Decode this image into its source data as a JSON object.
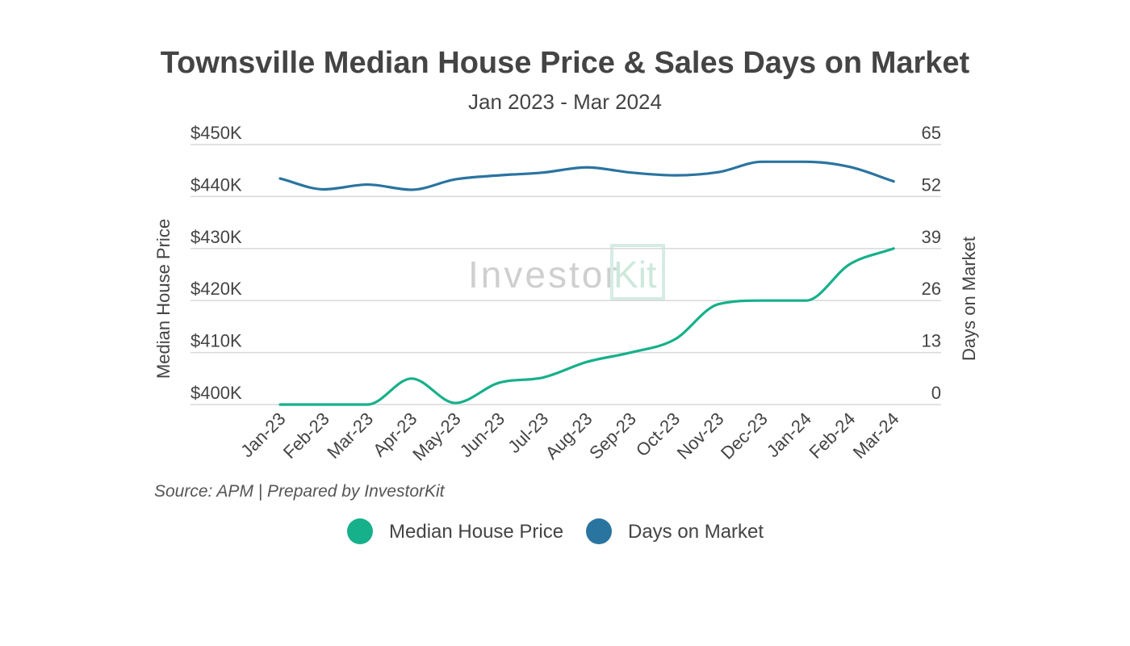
{
  "chart_data": {
    "type": "line",
    "title": "Townsville Median House Price & Sales Days on Market",
    "subtitle": "Jan 2023 - Mar 2024",
    "categories": [
      "Jan-23",
      "Feb-23",
      "Mar-23",
      "Apr-23",
      "May-23",
      "Jun-23",
      "Jul-23",
      "Aug-23",
      "Sep-23",
      "Oct-23",
      "Nov-23",
      "Dec-23",
      "Jan-24",
      "Feb-24",
      "Mar-24"
    ],
    "y_left": {
      "label": "Median House Price",
      "range": [
        400000,
        450000
      ],
      "ticks": [
        400000,
        410000,
        420000,
        430000,
        440000,
        450000
      ],
      "tick_labels": [
        "$400K",
        "$410K",
        "$420K",
        "$430K",
        "$440K",
        "$450K"
      ]
    },
    "y_right": {
      "label": "Days on Market",
      "range": [
        0,
        65
      ],
      "ticks": [
        0,
        13,
        26,
        39,
        52,
        65
      ],
      "tick_labels": [
        "0",
        "13",
        "26",
        "39",
        "52",
        "65"
      ]
    },
    "series": [
      {
        "name": "Median House Price",
        "axis": "left",
        "color": "#16b08a",
        "values": [
          400000,
          400000,
          400000,
          405000,
          400300,
          404200,
          405200,
          408200,
          410000,
          412500,
          419300,
          420000,
          420000,
          427000,
          430000
        ]
      },
      {
        "name": "Days on Market",
        "axis": "right",
        "color": "#2a74a0",
        "values": [
          56.5,
          53.8,
          55.0,
          53.7,
          56.3,
          57.3,
          58.0,
          59.3,
          58.0,
          57.3,
          58.1,
          60.7,
          60.7,
          59.4,
          55.8
        ]
      }
    ],
    "source": "Source: APM | Prepared by InvestorKit",
    "watermark": "Investor Kit",
    "legend_position": "bottom-center"
  },
  "watermark": {
    "word": "Investor",
    "kit_letter": "K",
    "kit_rest": "it"
  }
}
